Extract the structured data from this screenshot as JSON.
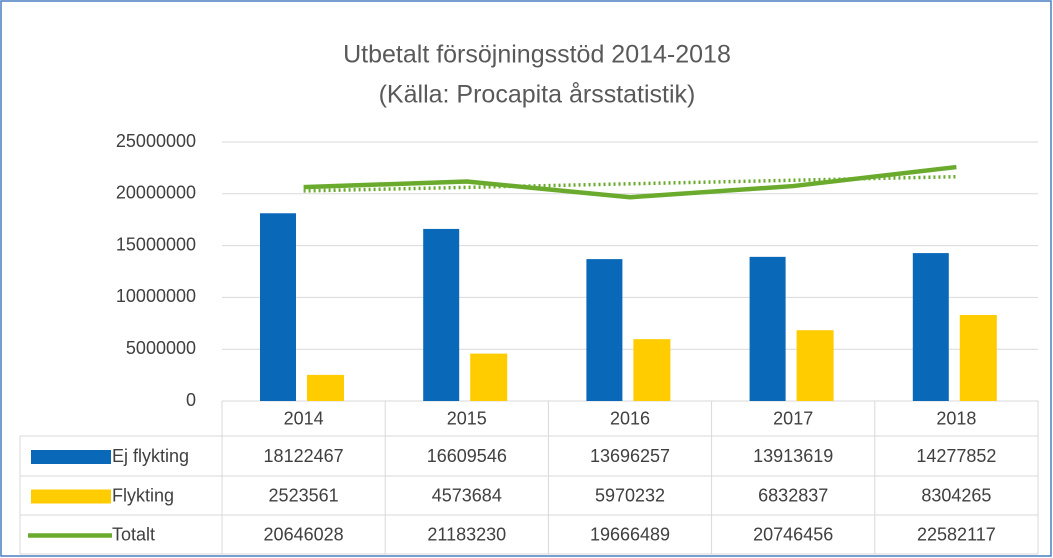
{
  "chart_data": {
    "type": "bar",
    "title": "Utbetalt försöjningsstöd 2014-2018",
    "subtitle": "(Källa: Procapita årsstatistik)",
    "categories": [
      "2014",
      "2015",
      "2016",
      "2017",
      "2018"
    ],
    "series": [
      {
        "name": "Ej flykting",
        "type": "bar",
        "color": "#0a68b8",
        "values": [
          18122467,
          16609546,
          13696257,
          13913619,
          14277852
        ]
      },
      {
        "name": "Flykting",
        "type": "bar",
        "color": "#ffcc00",
        "values": [
          2523561,
          4573684,
          5970232,
          6832837,
          8304265
        ]
      },
      {
        "name": "Totalt",
        "type": "line",
        "color": "#6aab2e",
        "trendline": "linear",
        "values": [
          20646028,
          21183230,
          19666489,
          20746456,
          22582117
        ]
      }
    ],
    "ylim": [
      0,
      25000000
    ],
    "yticks": [
      0,
      5000000,
      10000000,
      15000000,
      20000000,
      25000000
    ],
    "grid": true,
    "data_table": true
  }
}
